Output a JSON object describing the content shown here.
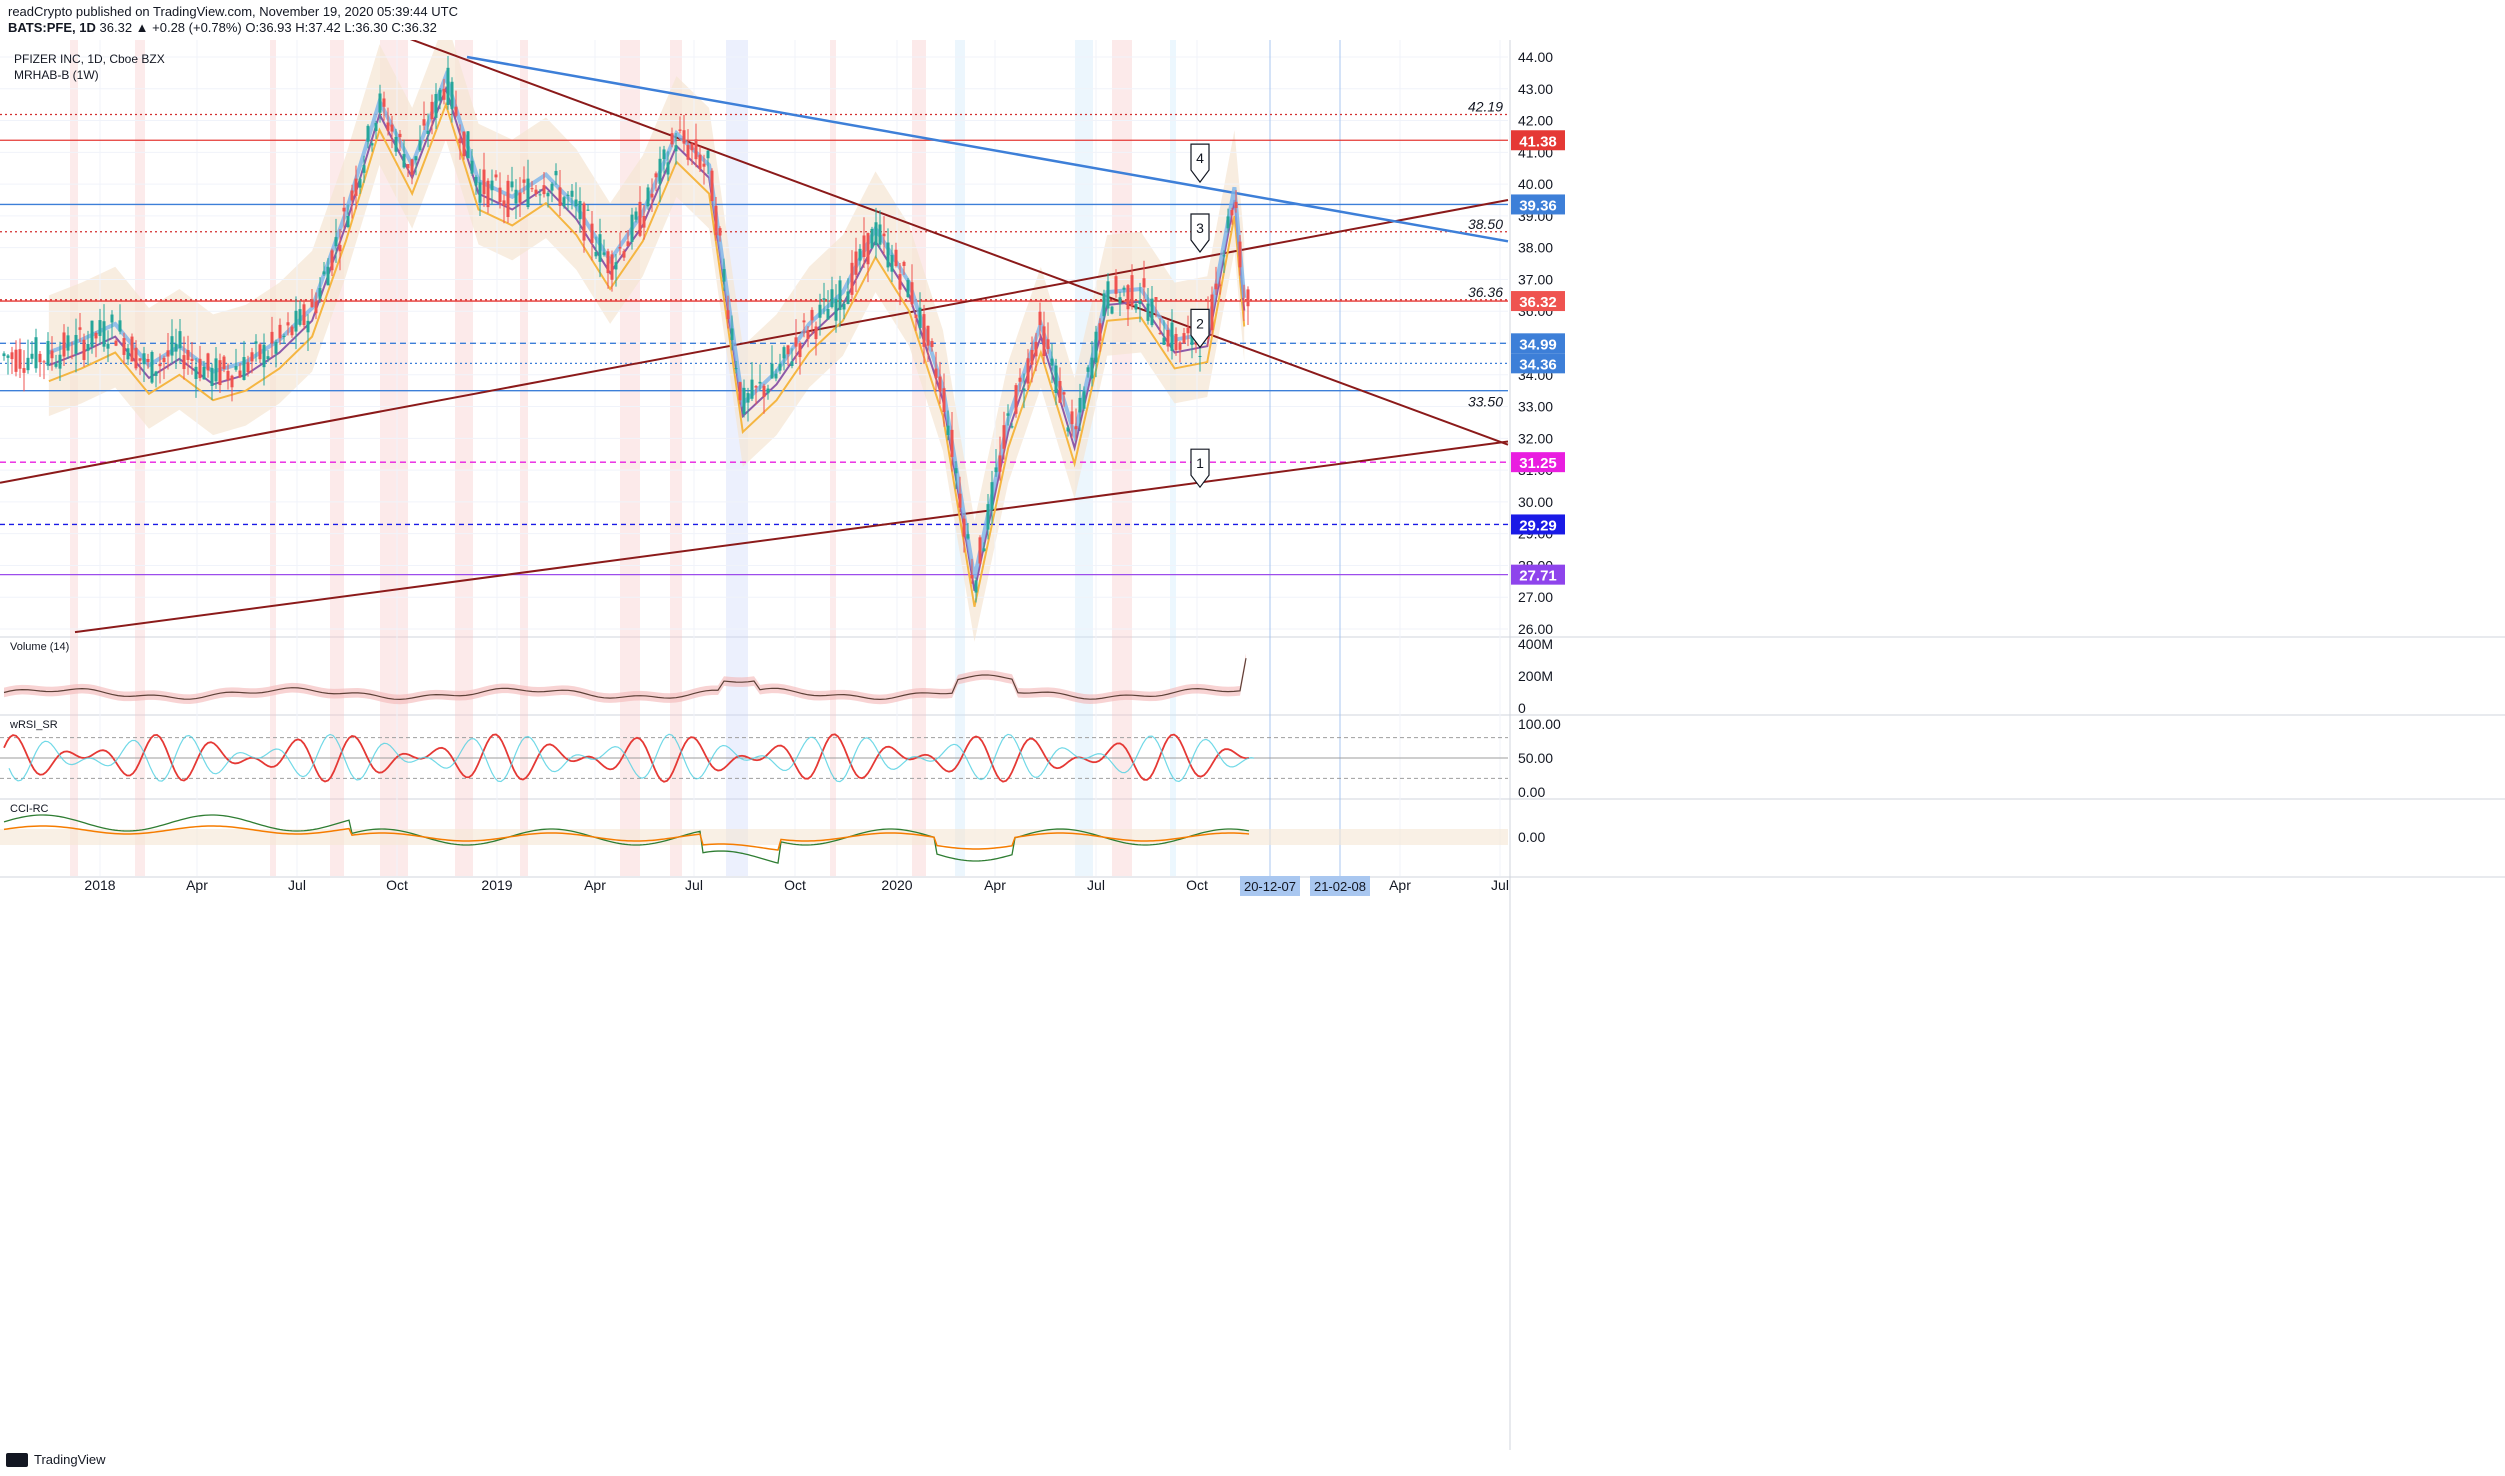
{
  "header": {
    "publisher_line": "readCrypto published on TradingView.com, November 19, 2020 05:39:44 UTC",
    "symbol": "BATS:PFE, 1D",
    "ohlc": "36.32 ▲ +0.28 (+0.78%) O:36.93 H:37.42 L:36.30 C:36.32"
  },
  "legend": {
    "instrument": "PFIZER INC, 1D, Cboe BZX",
    "indicator": "MRHAB-B (1W)"
  },
  "footer": {
    "brand": "TradingView"
  },
  "colors": {
    "up": "#26a69a",
    "down": "#ef5350",
    "blue_line": "#3d7fd8",
    "trend_dark": "#8b1a1a",
    "cloud": "#f5e6d3"
  },
  "chart_data": [
    {
      "type": "candlestick",
      "panel": "price",
      "ylim": [
        26,
        44.5
      ],
      "y_ticks": [
        "44.00",
        "43.00",
        "42.00",
        "41.00",
        "40.00",
        "39.00",
        "38.00",
        "37.00",
        "36.00",
        "35.00",
        "34.00",
        "33.00",
        "32.00",
        "31.00",
        "30.00",
        "29.00",
        "28.00",
        "27.00",
        "26.00"
      ],
      "x_ticks": [
        "2018",
        "Apr",
        "Jul",
        "Oct",
        "2019",
        "Apr",
        "Jul",
        "Oct",
        "2020",
        "Apr",
        "Jul",
        "Oct",
        "Apr",
        "Jul"
      ],
      "x_highlight_labels": [
        "20-12-07",
        "21-02-08"
      ],
      "close_path": [
        [
          "2017-11",
          34.6
        ],
        [
          "2017-12",
          35.0
        ],
        [
          "2018-01",
          35.5
        ],
        [
          "2018-02",
          34.2
        ],
        [
          "2018-03",
          34.8
        ],
        [
          "2018-04",
          34.0
        ],
        [
          "2018-05",
          34.3
        ],
        [
          "2018-06",
          35.0
        ],
        [
          "2018-07",
          36.0
        ],
        [
          "2018-08",
          39.0
        ],
        [
          "2018-09",
          42.5
        ],
        [
          "2018-10",
          40.5
        ],
        [
          "2018-11",
          43.3
        ],
        [
          "2018-12",
          40.0
        ],
        [
          "2019-01",
          39.5
        ],
        [
          "2019-02",
          40.2
        ],
        [
          "2019-03",
          39.2
        ],
        [
          "2019-04",
          37.5
        ],
        [
          "2019-05",
          39.0
        ],
        [
          "2019-06",
          41.5
        ],
        [
          "2019-07",
          40.5
        ],
        [
          "2019-08",
          33.0
        ],
        [
          "2019-09",
          34.0
        ],
        [
          "2019-10",
          35.5
        ],
        [
          "2019-11",
          36.5
        ],
        [
          "2019-12",
          38.5
        ],
        [
          "2020-01",
          36.8
        ],
        [
          "2020-02",
          33.5
        ],
        [
          "2020-03",
          27.5
        ],
        [
          "2020-04",
          32.5
        ],
        [
          "2020-05",
          35.5
        ],
        [
          "2020-06",
          32.0
        ],
        [
          "2020-07",
          36.5
        ],
        [
          "2020-08",
          36.6
        ],
        [
          "2020-09",
          35.0
        ],
        [
          "2020-10",
          35.2
        ],
        [
          "2020-11-09",
          39.8
        ],
        [
          "2020-11-18",
          36.32
        ]
      ],
      "horizontal_levels": [
        {
          "value": 42.19,
          "label": "42.19",
          "style": "dotted-red"
        },
        {
          "value": 41.38,
          "label": "41.38",
          "style": "solid-red"
        },
        {
          "value": 39.36,
          "label": "39.36",
          "style": "solid-blue"
        },
        {
          "value": 38.5,
          "label": "38.50",
          "style": "dotted-red"
        },
        {
          "value": 36.36,
          "label": "36.36",
          "style": "dotted-red"
        },
        {
          "value": 36.32,
          "label": "36.32",
          "style": "solid-red"
        },
        {
          "value": 34.99,
          "label": "34.99",
          "style": "dashed-blue"
        },
        {
          "value": 34.36,
          "label": "34.36",
          "style": "dotted-blue"
        },
        {
          "value": 33.5,
          "label": "33.50",
          "style": "solid-blue"
        },
        {
          "value": 31.25,
          "label": "31.25",
          "style": "dashed-magenta"
        },
        {
          "value": 29.29,
          "label": "29.29",
          "style": "dashed-navy"
        },
        {
          "value": 27.71,
          "label": "27.71",
          "style": "solid-purple"
        }
      ],
      "price_tags": [
        {
          "value": 41.38,
          "label": "41.38",
          "color": "#e53935"
        },
        {
          "value": 39.36,
          "label": "39.36",
          "color": "#3d7fd8"
        },
        {
          "value": 36.32,
          "label": "36.32",
          "color": "#ef5350"
        },
        {
          "value": 34.99,
          "label": "34.99",
          "color": "#3d7fd8"
        },
        {
          "value": 34.36,
          "label": "34.36",
          "color": "#3d7fd8"
        },
        {
          "value": 31.25,
          "label": "31.25",
          "color": "#e91ee0"
        },
        {
          "value": 29.29,
          "label": "29.29",
          "color": "#1a1ae6"
        },
        {
          "value": 27.71,
          "label": "27.71",
          "color": "#8e44ec"
        }
      ],
      "callouts": [
        {
          "label": "1",
          "date": "2020-10-20",
          "value": 30.4
        },
        {
          "label": "2",
          "date": "2020-10-20",
          "value": 34.8
        },
        {
          "label": "3",
          "date": "2020-10-20",
          "value": 37.8
        },
        {
          "label": "4",
          "date": "2020-10-20",
          "value": 40.0
        }
      ]
    },
    {
      "type": "area",
      "panel": "volume",
      "title": "Volume (14)",
      "y_ticks": [
        "400M",
        "200M",
        "0"
      ],
      "ylim": [
        0,
        400
      ]
    },
    {
      "type": "line",
      "panel": "oscillator",
      "title": "wRSI_SR",
      "y_ticks": [
        "100.00",
        "50.00",
        "0.00"
      ],
      "ylim": [
        0,
        100
      ]
    },
    {
      "type": "line",
      "panel": "cci",
      "title": "CCI-RC",
      "y_ticks": [
        "0.00"
      ]
    }
  ]
}
